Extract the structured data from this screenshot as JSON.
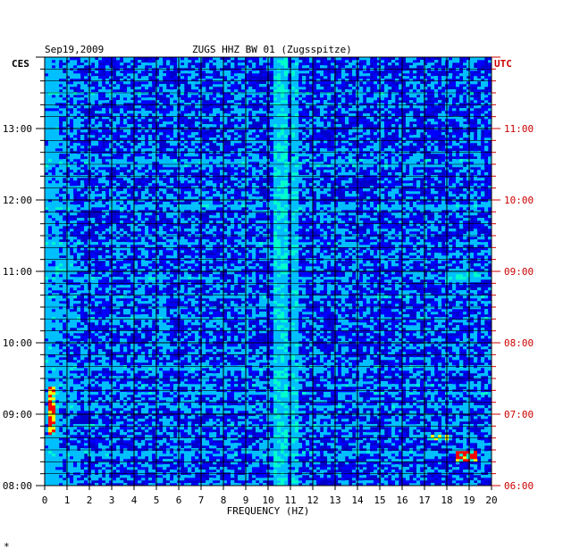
{
  "header": {
    "date": "Sep19,2009",
    "station": "ZUGS HHZ BW 01 (Zugsspitze)",
    "left_tz": "CES",
    "right_tz": "UTC"
  },
  "footnote": "*",
  "colors": {
    "background": "#0000cc",
    "grid": "#000000",
    "utc_text": "#cc0000",
    "text": "#000000",
    "colormap": [
      "#00008b",
      "#0000ff",
      "#00bfff",
      "#00ffcc",
      "#ffff00",
      "#ff0000"
    ]
  },
  "chart_data": {
    "type": "heatmap",
    "title": "ZUGS HHZ BW 01 (Zugsspitze)",
    "xlabel": "FREQUENCY (HZ)",
    "xlim": [
      0,
      20
    ],
    "x_ticks": [
      "0",
      "1",
      "2",
      "3",
      "4",
      "5",
      "6",
      "7",
      "8",
      "9",
      "10",
      "11",
      "12",
      "13",
      "14",
      "15",
      "16",
      "17",
      "18",
      "19",
      "20"
    ],
    "ylim_hours_ces": [
      8.0,
      14.0
    ],
    "y_ticks_left": [
      "08:00",
      "09:00",
      "10:00",
      "11:00",
      "12:00",
      "13:00"
    ],
    "y_ticks_right": [
      "06:00",
      "07:00",
      "08:00",
      "09:00",
      "10:00",
      "11:00"
    ],
    "features": [
      {
        "kind": "persistent_band",
        "freq_hz": [
          10.2,
          10.9
        ],
        "level": 0.55
      },
      {
        "kind": "persistent_band",
        "freq_hz": [
          11.1,
          11.4
        ],
        "level": 0.5
      },
      {
        "kind": "persistent_band",
        "freq_hz": [
          8.9,
          9.1
        ],
        "level": 0.35
      },
      {
        "kind": "persistent_band",
        "freq_hz": [
          0.0,
          0.6
        ],
        "level": 0.4
      },
      {
        "kind": "band_segment",
        "freq_hz": [
          5.1,
          5.4
        ],
        "time_ces": [
          9.8,
          10.8
        ],
        "level": 0.45
      },
      {
        "kind": "hot_spot",
        "freq_hz": [
          0.1,
          0.5
        ],
        "time_ces": [
          8.7,
          9.4
        ],
        "level": 0.85
      },
      {
        "kind": "hot_spot",
        "freq_hz": [
          18.4,
          19.4
        ],
        "time_ces": [
          8.35,
          8.5
        ],
        "level": 0.85
      },
      {
        "kind": "hot_spot",
        "freq_hz": [
          17.2,
          18.1
        ],
        "time_ces": [
          8.65,
          8.72
        ],
        "level": 0.7
      },
      {
        "kind": "hot_spot",
        "freq_hz": [
          18.0,
          19.5
        ],
        "time_ces": [
          10.85,
          11.0
        ],
        "level": 0.55
      },
      {
        "kind": "hot_spot",
        "freq_hz": [
          0.5,
          1.2
        ],
        "time_ces": [
          10.95,
          11.1
        ],
        "level": 0.55
      }
    ],
    "bright_rows_ces": [
      8.45,
      8.85,
      9.1,
      9.3,
      9.4,
      9.65,
      10.35,
      10.65,
      10.9,
      11.4,
      11.9,
      12.5,
      12.55,
      13.5
    ]
  }
}
